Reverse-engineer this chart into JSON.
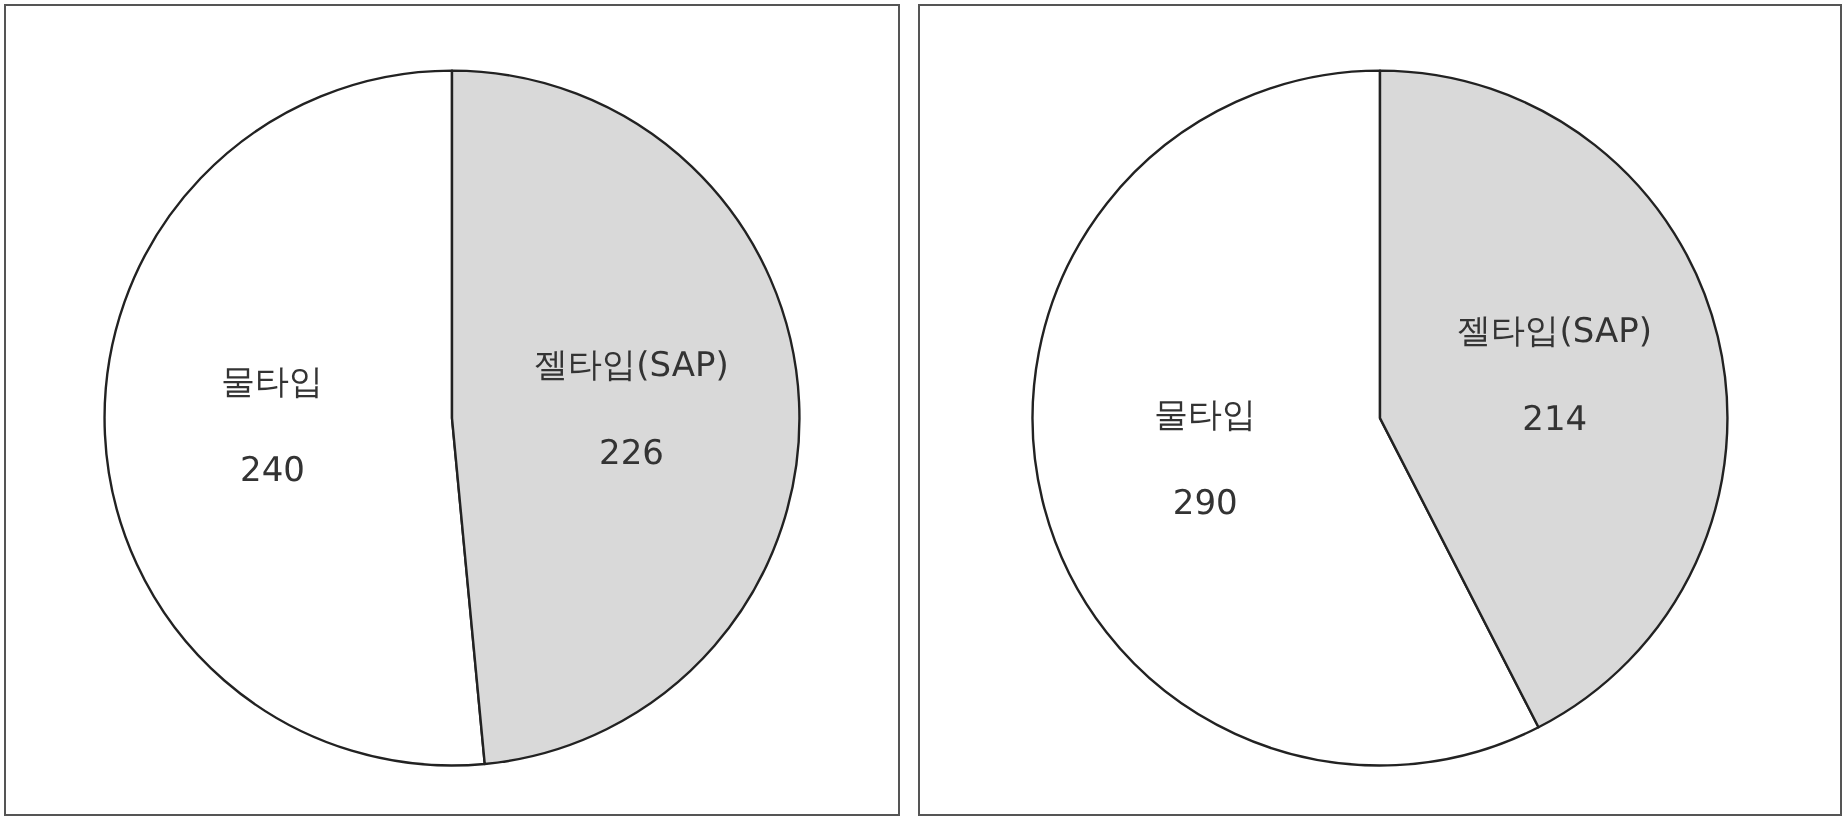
{
  "chart_data": [
    {
      "type": "pie",
      "categories": [
        "물타입",
        "젤타입(SAP)"
      ],
      "values": [
        240,
        226
      ],
      "colors": [
        "#ffffff",
        "#d9d9d9"
      ],
      "data_labels": true,
      "legend": false
    },
    {
      "type": "pie",
      "categories": [
        "물타입",
        "젤타입(SAP)"
      ],
      "values": [
        290,
        214
      ],
      "colors": [
        "#ffffff",
        "#d9d9d9"
      ],
      "data_labels": true,
      "legend": false
    }
  ]
}
